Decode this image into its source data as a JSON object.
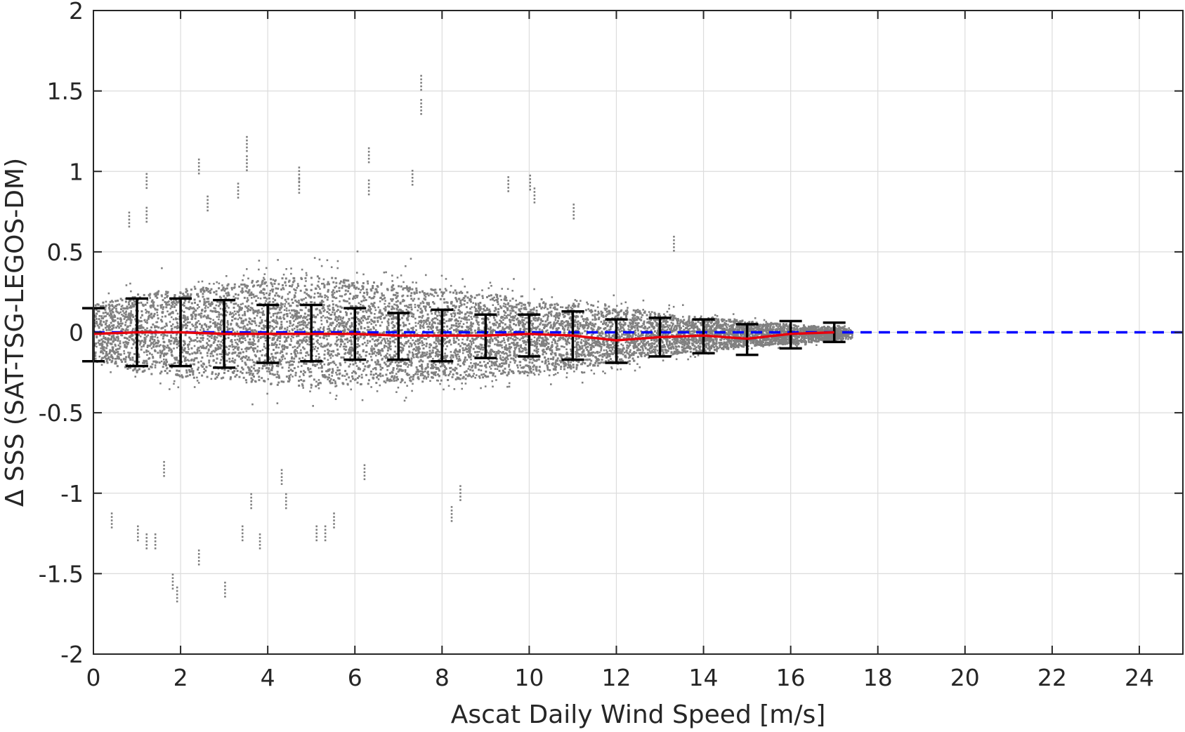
{
  "chart_data": {
    "type": "scatter",
    "xlabel": "Ascat Daily Wind Speed [m/s]",
    "ylabel": "Δ SSS (SAT-TSG-LEGOS-DM)",
    "xlim": [
      0,
      25
    ],
    "ylim": [
      -2,
      2
    ],
    "xticks": [
      0,
      2,
      4,
      6,
      8,
      10,
      12,
      14,
      16,
      18,
      20,
      22,
      24
    ],
    "xtick_labels": [
      "0",
      "2",
      "4",
      "6",
      "8",
      "10",
      "12",
      "14",
      "16",
      "18",
      "20",
      "22",
      "24"
    ],
    "yticks": [
      -2,
      -1.5,
      -1,
      -0.5,
      0,
      0.5,
      1,
      1.5,
      2
    ],
    "ytick_labels": [
      "-2",
      "-1.5",
      "-1",
      "-0.5",
      "0",
      "0.5",
      "1",
      "1.5",
      "2"
    ],
    "grid": true,
    "colors": {
      "scatter": "#808080",
      "mean_line": "#e8000b",
      "zero_line": "#0000ff",
      "error_bars": "#000000",
      "grid": "#dcdcdc",
      "axis": "#262626"
    },
    "scatter_envelope": {
      "x": [
        0,
        1,
        2,
        3,
        4,
        5,
        6,
        7,
        8,
        9,
        10,
        11,
        12,
        13,
        14,
        15,
        16,
        17
      ],
      "y_upper": [
        0.33,
        0.45,
        0.5,
        0.55,
        0.62,
        0.65,
        0.6,
        0.55,
        0.5,
        0.45,
        0.4,
        0.35,
        0.3,
        0.22,
        0.18,
        0.14,
        0.1,
        0.07
      ],
      "y_lower": [
        -0.3,
        -0.45,
        -0.5,
        -0.52,
        -0.58,
        -0.6,
        -0.58,
        -0.55,
        -0.55,
        -0.5,
        -0.45,
        -0.4,
        -0.35,
        -0.25,
        -0.2,
        -0.15,
        -0.12,
        -0.08
      ]
    },
    "outliers": [
      {
        "x": 0.4,
        "y": -1.12
      },
      {
        "x": 1.0,
        "y": -1.2
      },
      {
        "x": 1.2,
        "y": -1.25
      },
      {
        "x": 1.4,
        "y": -1.25
      },
      {
        "x": 1.6,
        "y": -0.8
      },
      {
        "x": 1.8,
        "y": -1.5
      },
      {
        "x": 1.9,
        "y": -1.58
      },
      {
        "x": 2.4,
        "y": -1.35
      },
      {
        "x": 3.0,
        "y": -1.55
      },
      {
        "x": 3.4,
        "y": -1.2
      },
      {
        "x": 3.6,
        "y": -1.0
      },
      {
        "x": 3.8,
        "y": -1.25
      },
      {
        "x": 4.4,
        "y": -1.0
      },
      {
        "x": 5.1,
        "y": -1.2
      },
      {
        "x": 5.3,
        "y": -1.2
      },
      {
        "x": 5.5,
        "y": -1.12
      },
      {
        "x": 6.2,
        "y": -0.82
      },
      {
        "x": 8.2,
        "y": -1.08
      },
      {
        "x": 8.4,
        "y": -0.95
      },
      {
        "x": 4.3,
        "y": -0.85
      },
      {
        "x": 1.2,
        "y": 0.99
      },
      {
        "x": 2.4,
        "y": 1.08
      },
      {
        "x": 3.5,
        "y": 1.22
      },
      {
        "x": 3.5,
        "y": 1.1
      },
      {
        "x": 4.7,
        "y": 1.03
      },
      {
        "x": 4.7,
        "y": 0.96
      },
      {
        "x": 6.3,
        "y": 1.15
      },
      {
        "x": 6.3,
        "y": 0.95
      },
      {
        "x": 7.5,
        "y": 1.6
      },
      {
        "x": 7.5,
        "y": 1.45
      },
      {
        "x": 7.3,
        "y": 1.01
      },
      {
        "x": 9.5,
        "y": 0.97
      },
      {
        "x": 10.0,
        "y": 0.98
      },
      {
        "x": 10.1,
        "y": 0.9
      },
      {
        "x": 11.0,
        "y": 0.8
      },
      {
        "x": 13.3,
        "y": 0.6
      },
      {
        "x": 1.2,
        "y": 0.78
      },
      {
        "x": 0.8,
        "y": 0.75
      },
      {
        "x": 2.6,
        "y": 0.85
      },
      {
        "x": 3.3,
        "y": 0.93
      }
    ],
    "binned_mean": {
      "x": [
        0,
        1,
        2,
        3,
        4,
        5,
        6,
        7,
        8,
        9,
        10,
        11,
        12,
        13,
        14,
        15,
        16,
        17
      ],
      "mean": [
        -0.01,
        0.0,
        0.0,
        -0.01,
        -0.01,
        -0.01,
        -0.01,
        -0.02,
        -0.02,
        -0.02,
        -0.01,
        -0.02,
        -0.05,
        -0.03,
        -0.02,
        -0.04,
        -0.01,
        0.0
      ],
      "lower": [
        -0.18,
        -0.21,
        -0.21,
        -0.22,
        -0.19,
        -0.18,
        -0.17,
        -0.17,
        -0.18,
        -0.16,
        -0.15,
        -0.17,
        -0.19,
        -0.15,
        -0.13,
        -0.14,
        -0.1,
        -0.06
      ],
      "upper": [
        0.15,
        0.21,
        0.21,
        0.2,
        0.17,
        0.17,
        0.15,
        0.12,
        0.14,
        0.11,
        0.11,
        0.13,
        0.08,
        0.09,
        0.08,
        0.05,
        0.07,
        0.06
      ]
    },
    "reference_line": {
      "y": 0,
      "style": "dashed"
    }
  }
}
